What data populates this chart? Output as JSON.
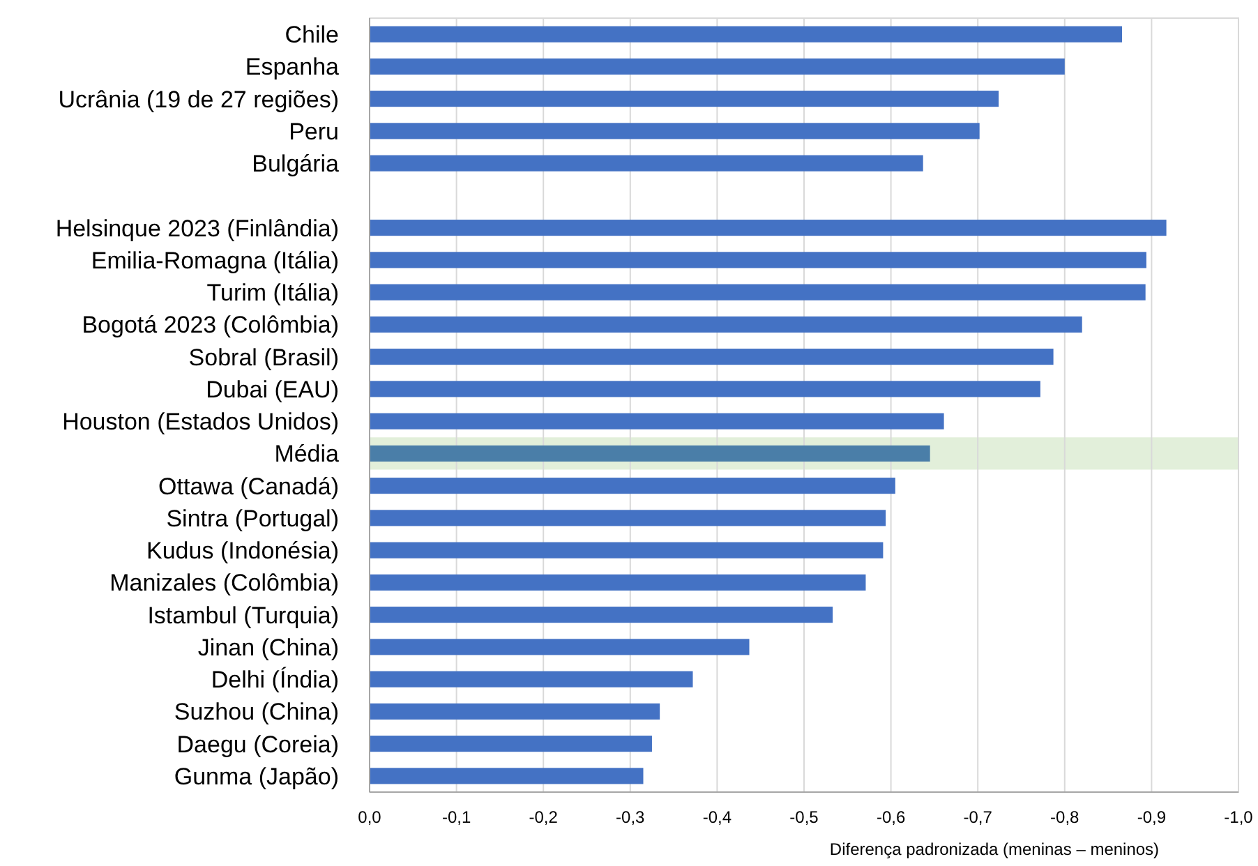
{
  "chart_data": {
    "type": "bar",
    "orientation": "horizontal",
    "xlabel": "Diferença padronizada (meninas – meninos)",
    "categories": [
      "Chile",
      "Espanha",
      "Ucrânia (19 de 27 regiões)",
      "Peru",
      "Bulgária",
      null,
      "Helsinque 2023 (Finlândia)",
      "Emilia-Romagna (Itália)",
      "Turim (Itália)",
      "Bogotá 2023 (Colômbia)",
      "Sobral (Brasil)",
      "Dubai (EAU)",
      "Houston (Estados Unidos)",
      "Média",
      "Ottawa (Canadá)",
      "Sintra (Portugal)",
      "Kudus (Indonésia)",
      "Manizales (Colômbia)",
      "Istambul (Turquia)",
      "Jinan (China)",
      "Delhi (Índia)",
      "Suzhou (China)",
      "Daegu (Coreia)",
      "Gunma (Japão)"
    ],
    "values": [
      -0.866,
      -0.8,
      -0.724,
      -0.702,
      -0.637,
      null,
      -0.917,
      -0.894,
      -0.893,
      -0.82,
      -0.787,
      -0.772,
      -0.661,
      -0.645,
      -0.605,
      -0.594,
      -0.591,
      -0.571,
      -0.533,
      -0.437,
      -0.372,
      -0.334,
      -0.325,
      -0.315
    ],
    "colors": [
      "#4472c4",
      "#4472c4",
      "#4472c4",
      "#4472c4",
      "#4472c4",
      null,
      "#4472c4",
      "#4472c4",
      "#4472c4",
      "#4472c4",
      "#4472c4",
      "#4472c4",
      "#4472c4",
      "#4a7ea8",
      "#4472c4",
      "#4472c4",
      "#4472c4",
      "#4472c4",
      "#4472c4",
      "#4472c4",
      "#4472c4",
      "#4472c4",
      "#4472c4",
      "#4472c4"
    ],
    "xlim": [
      0,
      -1
    ],
    "xticks": [
      {
        "value": 0,
        "label": "0,0"
      },
      {
        "value": -0.1,
        "label": "-0,1"
      },
      {
        "value": -0.2,
        "label": "-0,2"
      },
      {
        "value": -0.3,
        "label": "-0,3"
      },
      {
        "value": -0.4,
        "label": "-0,4"
      },
      {
        "value": -0.5,
        "label": "-0,5"
      },
      {
        "value": -0.6,
        "label": "-0,6"
      },
      {
        "value": -0.7,
        "label": "-0,7"
      },
      {
        "value": -0.8,
        "label": "-0,8"
      },
      {
        "value": -0.9,
        "label": "-0,9"
      },
      {
        "value": -1,
        "label": "-1,0"
      }
    ],
    "grid": "x",
    "bands": [
      {
        "axis": "y",
        "from": "Média",
        "to": "Média",
        "color": "#e2efda"
      }
    ]
  }
}
